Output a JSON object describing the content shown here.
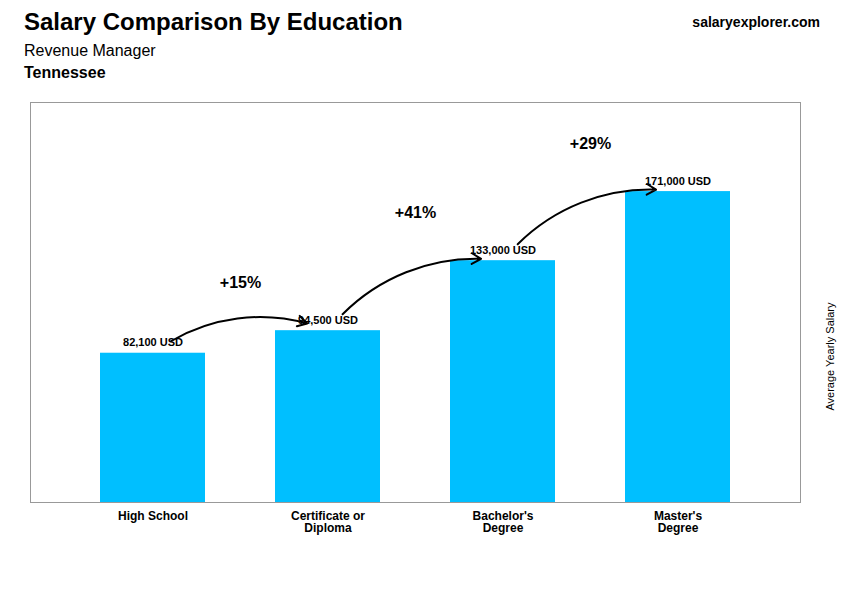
{
  "chart_data": {
    "type": "bar",
    "title": "Salary Comparison By Education",
    "subtitle": "Revenue Manager",
    "ylabel": "Average Yearly Salary",
    "categories": [
      "High School",
      "Certificate or\nDiploma",
      "Bachelor's\nDegree",
      "Master's\nDegree"
    ],
    "values": [
      82100,
      94500,
      133000,
      171000
    ],
    "value_labels": [
      "82,100 USD",
      "94,500 USD",
      "133,000 USD",
      "171,000 USD"
    ],
    "data_labels": true,
    "color": "#00BFFF",
    "ylim": [
      0,
      220000
    ],
    "tick_labels": "x",
    "annotations": [
      {
        "text": "Tennessee"
      },
      {
        "text": "salaryexplorer.com"
      },
      {
        "text": "+15%",
        "from": "High School",
        "to": "Certificate or\nDiploma"
      },
      {
        "text": "+41%",
        "from": "Certificate or\nDiploma",
        "to": "Bachelor's\nDegree"
      },
      {
        "text": "+29%",
        "from": "Bachelor's\nDegree",
        "to": "Master's\nDegree"
      }
    ]
  }
}
